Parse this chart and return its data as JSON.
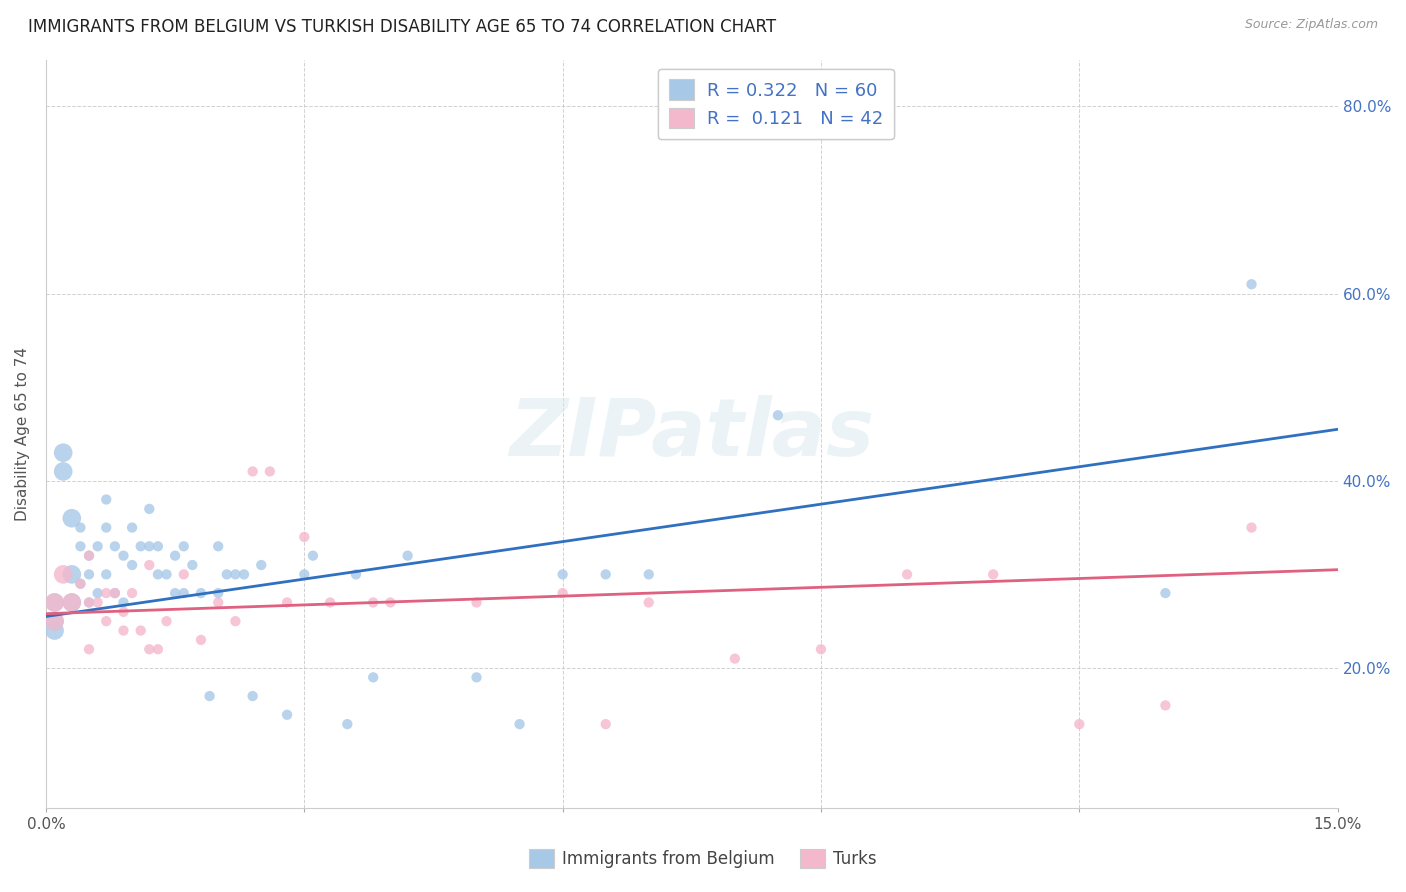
{
  "title": "IMMIGRANTS FROM BELGIUM VS TURKISH DISABILITY AGE 65 TO 74 CORRELATION CHART",
  "source": "Source: ZipAtlas.com",
  "ylabel": "Disability Age 65 to 74",
  "xlim": [
    0.0,
    0.15
  ],
  "ylim": [
    0.05,
    0.85
  ],
  "belgium_color": "#a8c8e8",
  "turks_color": "#f4b8cc",
  "belgium_line_color": "#3070c0",
  "turks_line_color": "#e06080",
  "r_belgium": 0.322,
  "n_belgium": 60,
  "r_turks": 0.121,
  "n_turks": 42,
  "legend_label_belgium": "Immigrants from Belgium",
  "legend_label_turks": "Turks",
  "watermark": "ZIPatlas",
  "belgium_line_x0": 0.0,
  "belgium_line_y0": 0.255,
  "belgium_line_x1": 0.15,
  "belgium_line_y1": 0.455,
  "turks_line_x0": 0.0,
  "turks_line_y0": 0.258,
  "turks_line_x1": 0.15,
  "turks_line_y1": 0.305,
  "belgium_scatter_x": [
    0.001,
    0.001,
    0.001,
    0.002,
    0.002,
    0.003,
    0.003,
    0.003,
    0.004,
    0.004,
    0.004,
    0.005,
    0.005,
    0.005,
    0.006,
    0.006,
    0.007,
    0.007,
    0.007,
    0.008,
    0.008,
    0.009,
    0.009,
    0.01,
    0.01,
    0.011,
    0.012,
    0.012,
    0.013,
    0.013,
    0.014,
    0.015,
    0.015,
    0.016,
    0.016,
    0.017,
    0.018,
    0.019,
    0.02,
    0.02,
    0.021,
    0.022,
    0.023,
    0.024,
    0.025,
    0.028,
    0.03,
    0.031,
    0.035,
    0.036,
    0.038,
    0.042,
    0.05,
    0.055,
    0.06,
    0.065,
    0.07,
    0.085,
    0.13,
    0.14
  ],
  "belgium_scatter_y": [
    0.27,
    0.25,
    0.24,
    0.43,
    0.41,
    0.36,
    0.3,
    0.27,
    0.35,
    0.33,
    0.29,
    0.32,
    0.3,
    0.27,
    0.33,
    0.28,
    0.38,
    0.35,
    0.3,
    0.33,
    0.28,
    0.32,
    0.27,
    0.35,
    0.31,
    0.33,
    0.37,
    0.33,
    0.33,
    0.3,
    0.3,
    0.32,
    0.28,
    0.33,
    0.28,
    0.31,
    0.28,
    0.17,
    0.33,
    0.28,
    0.3,
    0.3,
    0.3,
    0.17,
    0.31,
    0.15,
    0.3,
    0.32,
    0.14,
    0.3,
    0.19,
    0.32,
    0.19,
    0.14,
    0.3,
    0.3,
    0.3,
    0.47,
    0.28,
    0.61
  ],
  "turks_scatter_x": [
    0.001,
    0.001,
    0.002,
    0.003,
    0.004,
    0.005,
    0.005,
    0.006,
    0.007,
    0.008,
    0.009,
    0.01,
    0.011,
    0.012,
    0.013,
    0.014,
    0.016,
    0.018,
    0.02,
    0.022,
    0.024,
    0.026,
    0.028,
    0.03,
    0.033,
    0.038,
    0.04,
    0.05,
    0.06,
    0.065,
    0.07,
    0.08,
    0.09,
    0.1,
    0.11,
    0.12,
    0.13,
    0.14,
    0.005,
    0.007,
    0.009,
    0.012
  ],
  "turks_scatter_y": [
    0.27,
    0.25,
    0.3,
    0.27,
    0.29,
    0.27,
    0.32,
    0.27,
    0.25,
    0.28,
    0.24,
    0.28,
    0.24,
    0.22,
    0.22,
    0.25,
    0.3,
    0.23,
    0.27,
    0.25,
    0.41,
    0.41,
    0.27,
    0.34,
    0.27,
    0.27,
    0.27,
    0.27,
    0.28,
    0.14,
    0.27,
    0.21,
    0.22,
    0.3,
    0.3,
    0.14,
    0.16,
    0.35,
    0.22,
    0.28,
    0.26,
    0.31
  ],
  "background_color": "#ffffff",
  "grid_color": "#cccccc",
  "annotation_color": "#4472c4",
  "legend_color": "#4472c4"
}
